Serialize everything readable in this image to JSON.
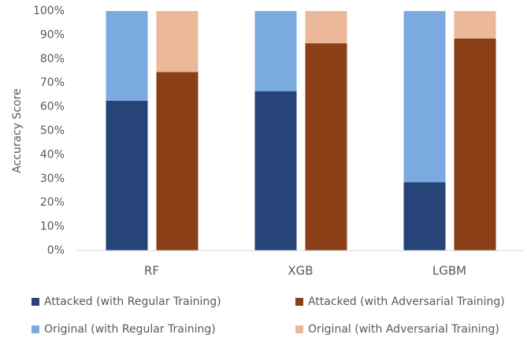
{
  "chart_data": {
    "type": "bar",
    "y_label": "Accuracy Score",
    "categories": [
      "RF",
      "XGB",
      "LGBM"
    ],
    "series": [
      {
        "name": "Attacked (with Regular Training)",
        "color": "#264478",
        "values": [
          62.5,
          66.5,
          28.5
        ]
      },
      {
        "name": "Attacked (with Adversarial Training)",
        "color": "#8b3f16",
        "values": [
          74.5,
          86.5,
          88.5
        ]
      },
      {
        "name": "Original (with Regular Training)",
        "color": "#7aaadf",
        "values": [
          100,
          100,
          100
        ]
      },
      {
        "name": "Original (with Adversarial Training)",
        "color": "#ebb99a",
        "values": [
          100,
          100,
          100
        ]
      }
    ],
    "ylim": [
      0,
      100
    ],
    "yticks": [
      {
        "value": 0,
        "label": "0%"
      },
      {
        "value": 10,
        "label": "10%"
      },
      {
        "value": 20,
        "label": "20%"
      },
      {
        "value": 30,
        "label": "30%"
      },
      {
        "value": 40,
        "label": "40%"
      },
      {
        "value": 50,
        "label": "50%"
      },
      {
        "value": 60,
        "label": "60%"
      },
      {
        "value": 70,
        "label": "70%"
      },
      {
        "value": 80,
        "label": "80%"
      },
      {
        "value": 90,
        "label": "90%"
      },
      {
        "value": 100,
        "label": "100%"
      }
    ],
    "grid": false
  }
}
